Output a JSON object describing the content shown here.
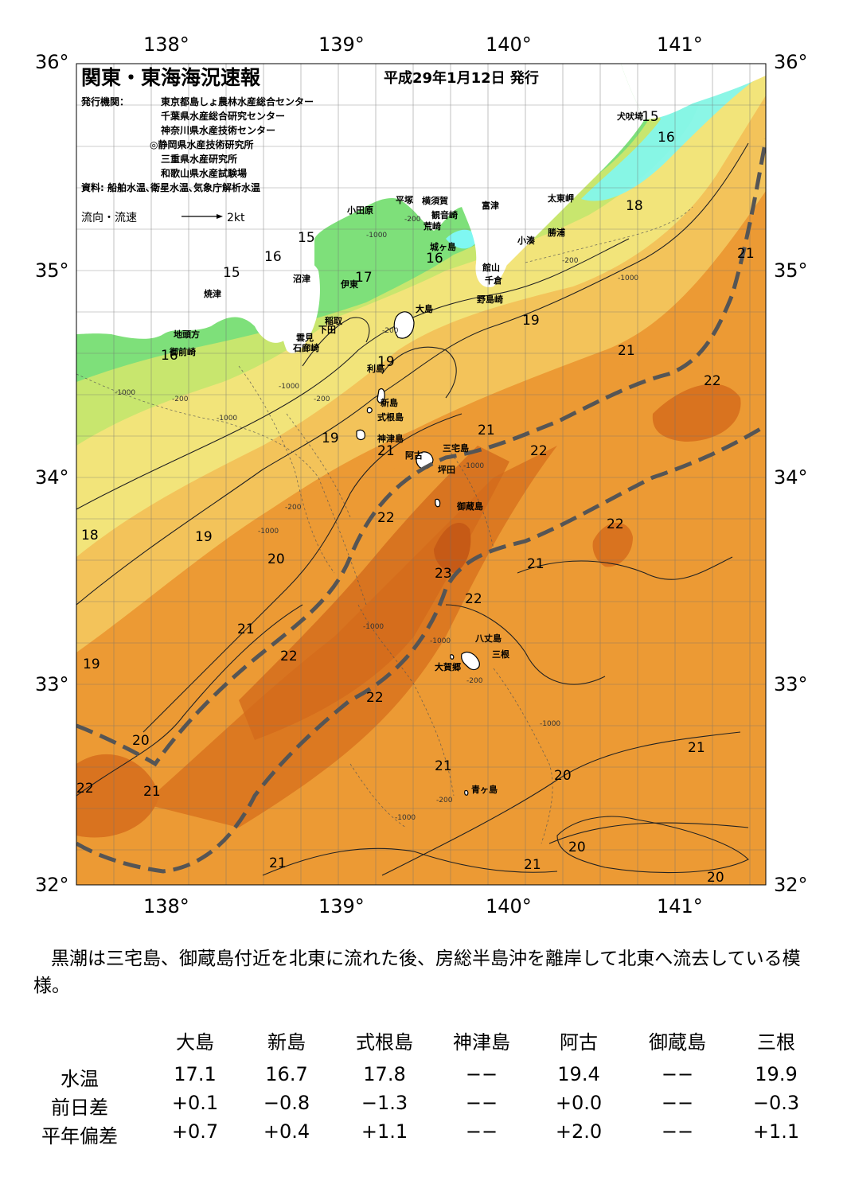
{
  "map": {
    "title": "関東・東海海況速報",
    "issue_date": "平成29年1月12日 発行",
    "issuer_label": "発行機関：",
    "issuers": [
      "東京都島しょ農林水産総合センター",
      "千葉県水産総合研究センター",
      "神奈川県水産技術センター",
      "◎静岡県水産技術研究所",
      "三重県水産研究所",
      "和歌山県水産試験場"
    ],
    "sources": "資料: 船舶水温､衛星水温､気象庁解析水温",
    "flow_legend": "流向・流速",
    "flow_scale": "2kt",
    "lon_ticks": [
      "138°",
      "139°",
      "140°",
      "141°"
    ],
    "lat_ticks": [
      "36°",
      "35°",
      "34°",
      "33°",
      "32°"
    ],
    "place_labels": {
      "inubozaki": "犬吠埼",
      "taitomisaki": "太東岬",
      "katsuura": "勝浦",
      "kominato": "小湊",
      "odawara": "小田原",
      "hiratsuka": "平塚",
      "yokosuka": "横須賀",
      "kannonzaki": "観音崎",
      "futtsu": "富津",
      "arasaki": "荒崎",
      "jogashima": "城ヶ島",
      "tateyama": "館山",
      "chikura": "千倉",
      "nojimazaki": "野島崎",
      "numazu": "沼津",
      "ito": "伊東",
      "yaizu": "焼津",
      "inatori": "稲取",
      "shimoda": "下田",
      "kumomi": "雲見",
      "irozaki": "石廊崎",
      "jitogata": "地頭方",
      "omaezaki": "御前崎",
      "oshima": "大島",
      "toshima": "利島",
      "niijima": "新島",
      "shikinejima": "式根島",
      "kozushima": "神津島",
      "miyakejima": "三宅島",
      "ako": "阿古",
      "tsubota": "坪田",
      "mikurajima": "御蔵島",
      "hachijojima": "八丈島",
      "mitsune": "三根",
      "okagou": "大賀郷",
      "aogashima": "青ヶ島"
    },
    "isotherm_labels": [
      "15",
      "16",
      "18",
      "21",
      "15",
      "16",
      "15",
      "17",
      "16",
      "19",
      "21",
      "22",
      "16",
      "19",
      "19",
      "21",
      "21",
      "22",
      "18",
      "19",
      "22",
      "20",
      "23",
      "21",
      "22",
      "21",
      "22",
      "19",
      "22",
      "20",
      "22",
      "21",
      "21",
      "20",
      "21",
      "20"
    ],
    "depth_labels": [
      "-200",
      "-1000",
      "-200",
      "-200",
      "-1000",
      "-1000",
      "-200",
      "-1000",
      "-200",
      "-1000",
      "-200",
      "-1000",
      "-1000",
      "-1000",
      "-200",
      "-1000",
      "-1000",
      "-200",
      "-1000"
    ],
    "colors": {
      "cold_cyan": "#7ff7f2",
      "green": "#7ee07a",
      "yellowgreen": "#c8e66e",
      "yellow": "#f2e47a",
      "lightorange": "#f3c35a",
      "orange": "#ec9a34",
      "darkorange": "#d9731f",
      "core": "#c65a16",
      "kuroshio_axis": "#555555"
    }
  },
  "summary": "黒潮は三宅島、御蔵島付近を北東に流れた後、房総半島沖を離岸して北東へ流去している模様。",
  "stats": {
    "columns": [
      "大島",
      "新島",
      "式根島",
      "神津島",
      "阿古",
      "御蔵島",
      "三根"
    ],
    "rows": [
      {
        "label": "水温",
        "values": [
          "17.1",
          "16.7",
          "17.8",
          "−−",
          "19.4",
          "−−",
          "19.9"
        ]
      },
      {
        "label": "前日差",
        "values": [
          "+0.1",
          "−0.8",
          "−1.3",
          "−−",
          "+0.0",
          "−−",
          "−0.3"
        ]
      },
      {
        "label": "平年偏差",
        "values": [
          "+0.7",
          "+0.4",
          "+1.1",
          "−−",
          "+2.0",
          "−−",
          "+1.1"
        ]
      }
    ]
  }
}
